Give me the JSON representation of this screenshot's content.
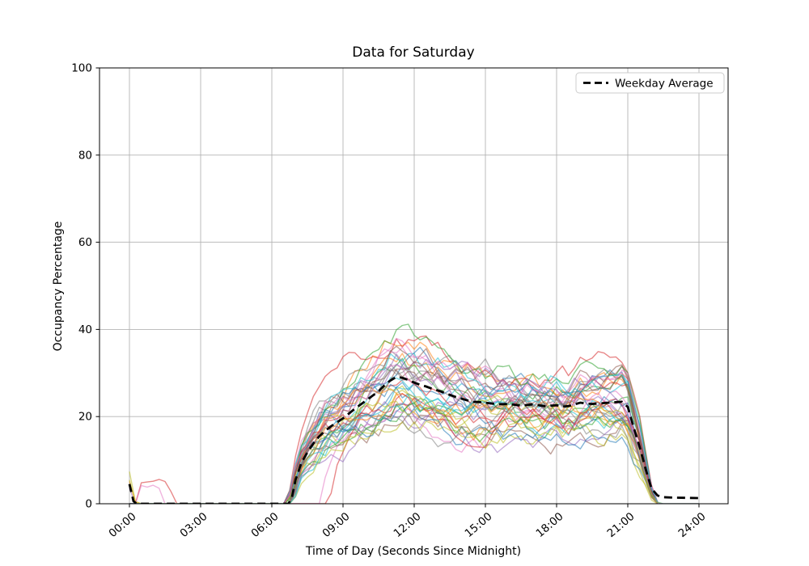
{
  "chart_data": {
    "type": "line",
    "title": "Data for Saturday",
    "xlabel": "Time of Day (Seconds Since Midnight)",
    "ylabel": "Occupancy Percentage",
    "ylim": [
      0,
      100
    ],
    "xlim_hours": [
      -1.26,
      25.26
    ],
    "grid": true,
    "x_ticks": [
      {
        "label": "00:00",
        "hour": 0
      },
      {
        "label": "03:00",
        "hour": 3
      },
      {
        "label": "06:00",
        "hour": 6
      },
      {
        "label": "09:00",
        "hour": 9
      },
      {
        "label": "12:00",
        "hour": 12
      },
      {
        "label": "15:00",
        "hour": 15
      },
      {
        "label": "18:00",
        "hour": 18
      },
      {
        "label": "21:00",
        "hour": 21
      },
      {
        "label": "24:00",
        "hour": 24
      }
    ],
    "y_ticks": [
      0,
      20,
      40,
      60,
      80,
      100
    ],
    "legend": {
      "position": "upper right",
      "entries": [
        {
          "label": "Weekday Average",
          "style": "dashed",
          "color": "#000000"
        }
      ]
    },
    "series": [
      {
        "name": "Weekday Average",
        "role": "average",
        "color": "#000000",
        "dashed": true,
        "linewidth": 2.8,
        "points_hour_value": [
          [
            0,
            4.5
          ],
          [
            0.17,
            0.6
          ],
          [
            0.3,
            0
          ],
          [
            6.7,
            0
          ],
          [
            6.85,
            1.5
          ],
          [
            7,
            5.5
          ],
          [
            7.25,
            9.5
          ],
          [
            7.5,
            11.8
          ],
          [
            7.75,
            13.8
          ],
          [
            8,
            15.5
          ],
          [
            8.25,
            16.7
          ],
          [
            8.5,
            17.8
          ],
          [
            8.75,
            18.7
          ],
          [
            9,
            19.6
          ],
          [
            9.25,
            20.7
          ],
          [
            9.5,
            21.8
          ],
          [
            9.75,
            22.8
          ],
          [
            10,
            23.8
          ],
          [
            10.25,
            24.8
          ],
          [
            10.5,
            25.8
          ],
          [
            10.75,
            27.2
          ],
          [
            11,
            28.3
          ],
          [
            11.25,
            29.1
          ],
          [
            11.5,
            28.9
          ],
          [
            11.75,
            28.4
          ],
          [
            12,
            27.8
          ],
          [
            12.25,
            27.3
          ],
          [
            12.5,
            26.9
          ],
          [
            12.75,
            26.4
          ],
          [
            13,
            26
          ],
          [
            13.25,
            25.5
          ],
          [
            13.5,
            25
          ],
          [
            13.75,
            24.5
          ],
          [
            14,
            24.1
          ],
          [
            14.25,
            23.7
          ],
          [
            14.5,
            23.4
          ],
          [
            14.75,
            23.3
          ],
          [
            15,
            23.2
          ],
          [
            15.5,
            22.8
          ],
          [
            16,
            22.9
          ],
          [
            16.5,
            22.5
          ],
          [
            17,
            22.8
          ],
          [
            17.5,
            22.4
          ],
          [
            18,
            22.6
          ],
          [
            18.25,
            22.3
          ],
          [
            18.5,
            22.4
          ],
          [
            18.75,
            22.8
          ],
          [
            19,
            23.2
          ],
          [
            19.25,
            23
          ],
          [
            19.5,
            22.9
          ],
          [
            20,
            23.1
          ],
          [
            20.5,
            23.3
          ],
          [
            20.75,
            23.4
          ],
          [
            21,
            22.2
          ],
          [
            21.25,
            17.5
          ],
          [
            21.5,
            13
          ],
          [
            21.75,
            8
          ],
          [
            22,
            3.5
          ],
          [
            22.25,
            1.9
          ],
          [
            22.5,
            1.5
          ],
          [
            23,
            1.4
          ],
          [
            24,
            1.3
          ]
        ]
      }
    ],
    "individual_traces": {
      "role": "individual-saturday-traces",
      "count": 40,
      "alpha": 0.55,
      "linewidth": 1.4,
      "step_hours": 0.25,
      "seed": 20,
      "palette": [
        "#1f77b4",
        "#ff7f0e",
        "#2ca02c",
        "#d62728",
        "#9467bd",
        "#8c564b",
        "#e377c2",
        "#7f7f7f",
        "#bcbd22",
        "#17becf"
      ],
      "scale_range": [
        0.72,
        1.34
      ],
      "noise_max": 7.5,
      "value_envelope_mid_day": [
        13,
        44
      ],
      "active_hours": [
        6.8,
        22.3
      ],
      "midnight_spike_max": 7.5
    },
    "colors": {
      "grid": "#b4b4b4",
      "spine": "#000000",
      "background": "#ffffff",
      "legend_border": "#cccccc"
    }
  }
}
